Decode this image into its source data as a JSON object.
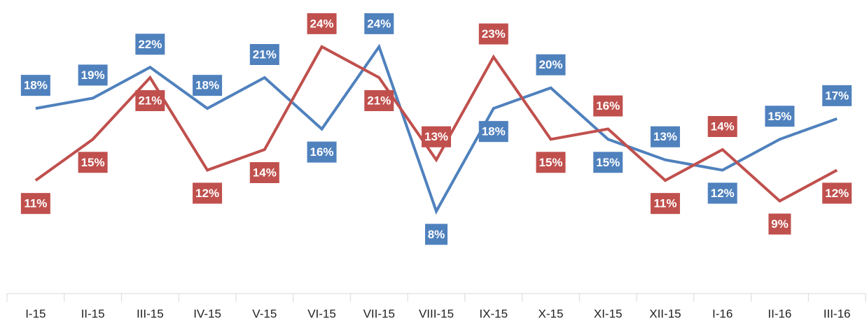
{
  "chart_data": {
    "type": "line",
    "categories": [
      "I-15",
      "II-15",
      "III-15",
      "IV-15",
      "V-15",
      "VI-15",
      "VII-15",
      "VIII-15",
      "IX-15",
      "X-15",
      "XI-15",
      "XII-15",
      "I-16",
      "II-16",
      "III-16"
    ],
    "ylim": [
      0,
      28
    ],
    "series": [
      {
        "color": "#4f81bd",
        "values": [
          18,
          19,
          22,
          18,
          21,
          16,
          24,
          8,
          18,
          20,
          15,
          13,
          12,
          15,
          17
        ],
        "value_labels": [
          "18%",
          "19%",
          "22%",
          "18%",
          "21%",
          "16%",
          "24%",
          "8%",
          "18%",
          "20%",
          "15%",
          "13%",
          "12%",
          "15%",
          "17%"
        ]
      },
      {
        "color": "#c0504d",
        "values": [
          11,
          15,
          21,
          12,
          14,
          24,
          21,
          13,
          23,
          15,
          16,
          11,
          14,
          9,
          12
        ],
        "value_labels": [
          "11%",
          "15%",
          "21%",
          "12%",
          "14%",
          "24%",
          "21%",
          "13%",
          "23%",
          "15%",
          "16%",
          "11%",
          "14%",
          "9%",
          "12%"
        ]
      }
    ]
  }
}
